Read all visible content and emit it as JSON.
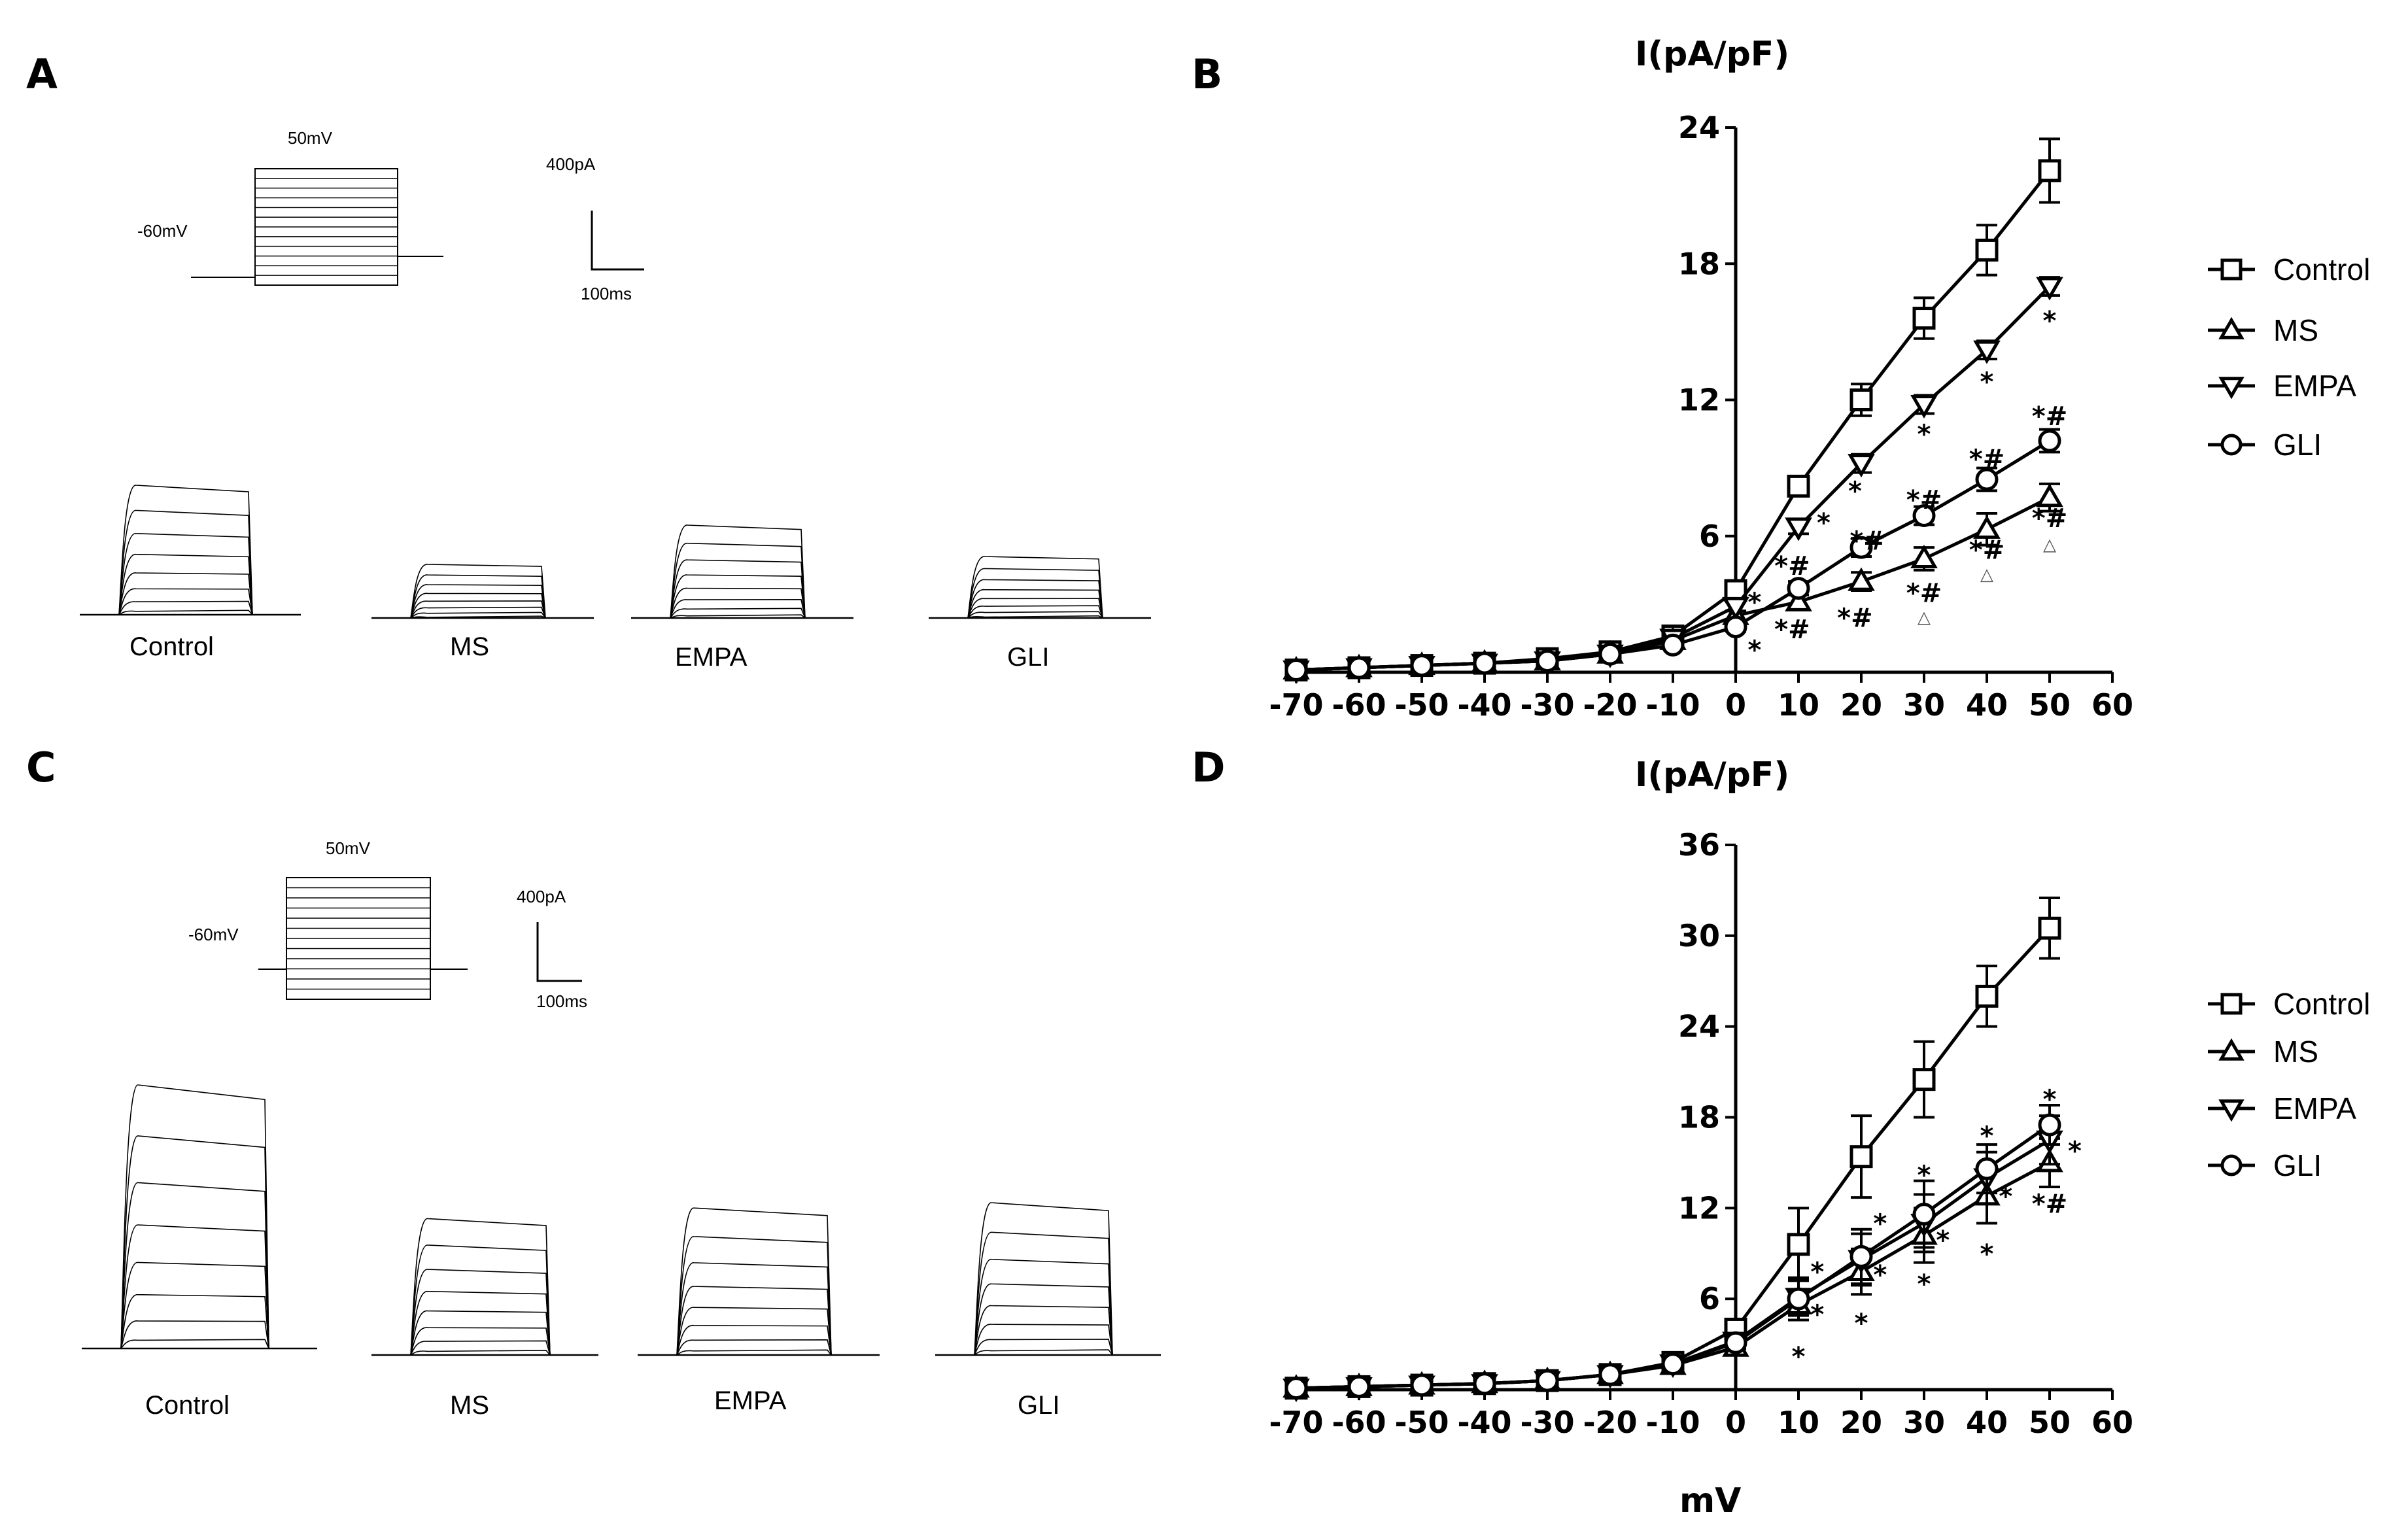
{
  "panels": {
    "A": {
      "label": "A",
      "protocol": {
        "hold": "-60mV",
        "step": "50mV"
      },
      "scale": {
        "current": "400pA",
        "time": "100ms"
      },
      "traces": [
        "Control",
        "MS",
        "EMPA",
        "GLI"
      ]
    },
    "C": {
      "label": "C",
      "protocol": {
        "hold": "-60mV",
        "step": "50mV"
      },
      "scale": {
        "current": "400pA",
        "time": "100ms"
      },
      "traces": [
        "Control",
        "MS",
        "EMPA",
        "GLI"
      ]
    },
    "B": {
      "label": "B"
    },
    "D": {
      "label": "D"
    }
  },
  "trace_amplitudes": {
    "A": {
      "Control": 1.0,
      "MS": 0.42,
      "EMPA": 0.72,
      "GLI": 0.48
    },
    "C": {
      "Control": 1.0,
      "MS": 0.52,
      "EMPA": 0.56,
      "GLI": 0.58
    }
  },
  "chart_data": [
    {
      "id": "B",
      "type": "line",
      "ylabel": "I(pA/pF)",
      "xlabel": "",
      "x": [
        -70,
        -60,
        -50,
        -40,
        -30,
        -20,
        -10,
        0,
        10,
        20,
        30,
        40,
        50
      ],
      "xticks": [
        "-70",
        "-60",
        "-50",
        "-40",
        "-30",
        "-20",
        "-10",
        "0",
        "10",
        "20",
        "30",
        "40",
        "50",
        "60"
      ],
      "xlim": [
        -70,
        60
      ],
      "ylim": [
        0,
        24
      ],
      "yticks": [
        "6",
        "12",
        "18",
        "24"
      ],
      "series": [
        {
          "name": "Control",
          "marker": "square",
          "values": [
            0.1,
            0.2,
            0.3,
            0.4,
            0.6,
            0.9,
            1.6,
            3.6,
            8.2,
            12.0,
            15.6,
            18.6,
            22.1
          ],
          "errors": [
            0,
            0,
            0,
            0,
            0,
            0.1,
            0.2,
            0.3,
            0.4,
            0.7,
            0.9,
            1.1,
            1.4
          ]
        },
        {
          "name": "MS",
          "marker": "triangle-up",
          "values": [
            0.1,
            0.2,
            0.3,
            0.4,
            0.5,
            0.8,
            1.4,
            2.5,
            3.1,
            4.0,
            5.0,
            6.3,
            7.7
          ],
          "errors": [
            0,
            0,
            0,
            0,
            0,
            0.1,
            0.1,
            0.2,
            0.3,
            0.4,
            0.5,
            0.7,
            0.6
          ]
        },
        {
          "name": "EMPA",
          "marker": "triangle-down",
          "values": [
            0.1,
            0.2,
            0.3,
            0.4,
            0.5,
            0.8,
            1.5,
            2.9,
            6.4,
            9.2,
            11.8,
            14.2,
            17.0
          ],
          "errors": [
            0,
            0,
            0,
            0,
            0,
            0.1,
            0.2,
            0.2,
            0.3,
            0.4,
            0.4,
            0.4,
            0.4
          ]
        },
        {
          "name": "GLI",
          "marker": "circle",
          "values": [
            0.1,
            0.2,
            0.3,
            0.4,
            0.5,
            0.8,
            1.2,
            2.0,
            3.7,
            5.5,
            6.9,
            8.5,
            10.2
          ],
          "errors": [
            0,
            0,
            0,
            0,
            0,
            0.1,
            0.1,
            0.2,
            0.3,
            0.4,
            0.4,
            0.5,
            0.5
          ]
        }
      ],
      "annotations": [
        {
          "x": 3,
          "y": 3.1,
          "text": "*"
        },
        {
          "x": 3,
          "y": 1.0,
          "text": "*"
        },
        {
          "x": 14,
          "y": 6.6,
          "text": "*"
        },
        {
          "x": 9,
          "y": 4.7,
          "text": "*#"
        },
        {
          "x": 9,
          "y": 1.9,
          "text": "*#"
        },
        {
          "x": 19,
          "y": 8.0,
          "text": "*"
        },
        {
          "x": 21,
          "y": 5.8,
          "text": "*#"
        },
        {
          "x": 19,
          "y": 2.4,
          "text": "*#"
        },
        {
          "x": 30,
          "y": 10.5,
          "text": "*"
        },
        {
          "x": 30,
          "y": 7.6,
          "text": "*#"
        },
        {
          "x": 30,
          "y": 3.5,
          "text": "*#"
        },
        {
          "x": 40,
          "y": 12.8,
          "text": "*"
        },
        {
          "x": 40,
          "y": 9.4,
          "text": "*#"
        },
        {
          "x": 40,
          "y": 5.4,
          "text": "*#"
        },
        {
          "x": 50,
          "y": 15.5,
          "text": "*"
        },
        {
          "x": 50,
          "y": 11.3,
          "text": "*#"
        },
        {
          "x": 50,
          "y": 6.8,
          "text": "*#"
        }
      ],
      "triangle_marks": [
        {
          "x": 30,
          "y": 2.4
        },
        {
          "x": 40,
          "y": 4.3
        },
        {
          "x": 50,
          "y": 5.6
        }
      ]
    },
    {
      "id": "D",
      "type": "line",
      "ylabel": "I(pA/pF)",
      "xlabel": "mV",
      "x": [
        -70,
        -60,
        -50,
        -40,
        -30,
        -20,
        -10,
        0,
        10,
        20,
        30,
        40,
        50
      ],
      "xticks": [
        "-70",
        "-60",
        "-50",
        "-40",
        "-30",
        "-20",
        "-10",
        "0",
        "10",
        "20",
        "30",
        "40",
        "50",
        "60"
      ],
      "xlim": [
        -70,
        60
      ],
      "ylim": [
        0,
        36
      ],
      "yticks": [
        "6",
        "12",
        "18",
        "24",
        "30",
        "36"
      ],
      "series": [
        {
          "name": "Control",
          "marker": "square",
          "values": [
            0.1,
            0.2,
            0.3,
            0.4,
            0.6,
            1.0,
            1.8,
            4.0,
            9.6,
            15.4,
            20.5,
            26.0,
            30.5
          ],
          "errors": [
            0,
            0,
            0,
            0,
            0,
            0.1,
            0.2,
            0.5,
            2.4,
            2.7,
            2.5,
            2.0,
            2.0
          ]
        },
        {
          "name": "MS",
          "marker": "triangle-up",
          "values": [
            0.1,
            0.2,
            0.3,
            0.4,
            0.6,
            1.0,
            1.6,
            2.8,
            5.6,
            7.8,
            10.2,
            12.8,
            15.0
          ],
          "errors": [
            0,
            0,
            0,
            0,
            0,
            0.1,
            0.2,
            0.4,
            1.0,
            1.5,
            1.8,
            1.8,
            1.6
          ]
        },
        {
          "name": "EMPA",
          "marker": "triangle-down",
          "values": [
            0.1,
            0.2,
            0.3,
            0.4,
            0.6,
            1.0,
            1.7,
            3.2,
            6.1,
            8.6,
            11.0,
            14.0,
            16.5
          ],
          "errors": [
            0,
            0,
            0,
            0,
            0,
            0.1,
            0.2,
            0.4,
            1.2,
            1.7,
            1.9,
            1.7,
            1.6
          ]
        },
        {
          "name": "GLI",
          "marker": "circle",
          "values": [
            0.1,
            0.2,
            0.3,
            0.4,
            0.6,
            1.0,
            1.7,
            3.1,
            6.0,
            8.8,
            11.6,
            14.6,
            17.5
          ],
          "errors": [
            0,
            0,
            0,
            0,
            0,
            0.1,
            0.2,
            0.4,
            1.4,
            1.8,
            2.2,
            1.6,
            1.3
          ]
        }
      ],
      "annotations": [
        {
          "x": 13,
          "y": 7.8,
          "text": "*"
        },
        {
          "x": 13,
          "y": 5.0,
          "text": "*"
        },
        {
          "x": 10,
          "y": 2.2,
          "text": "*"
        },
        {
          "x": 23,
          "y": 11.0,
          "text": "*"
        },
        {
          "x": 23,
          "y": 7.6,
          "text": "*"
        },
        {
          "x": 20,
          "y": 4.4,
          "text": "*"
        },
        {
          "x": 30,
          "y": 14.2,
          "text": "*"
        },
        {
          "x": 33,
          "y": 9.9,
          "text": "*"
        },
        {
          "x": 30,
          "y": 7.0,
          "text": "*"
        },
        {
          "x": 40,
          "y": 16.8,
          "text": "*"
        },
        {
          "x": 43,
          "y": 12.8,
          "text": "*"
        },
        {
          "x": 40,
          "y": 9.0,
          "text": "*"
        },
        {
          "x": 50,
          "y": 19.2,
          "text": "*"
        },
        {
          "x": 54,
          "y": 15.8,
          "text": "*"
        },
        {
          "x": 50,
          "y": 12.3,
          "text": "*#"
        }
      ],
      "triangle_marks": []
    }
  ]
}
